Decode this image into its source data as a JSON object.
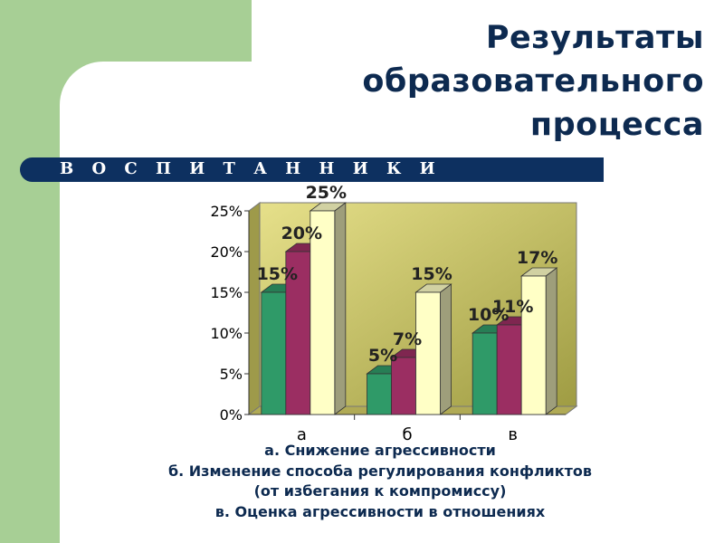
{
  "slide": {
    "title_lines": [
      "Результаты",
      "образовательного",
      "процесса"
    ],
    "banner": "В О С П И Т А Н Н И К И",
    "legend_lines": [
      "а. Снижение агрессивности",
      "б. Изменение способа регулирования конфликтов",
      "(от избегания к компромиссу)",
      "в. Оценка агрессивности в отношениях"
    ]
  },
  "colors": {
    "background_band": "#a7cf95",
    "title": "#0d2a50",
    "banner": "#0d3060",
    "plot_area": "#c8c35e",
    "series": [
      "#2f9a68",
      "#9b2e62",
      "#ffffc6"
    ]
  },
  "chart_data": {
    "type": "bar",
    "style": "3d-clustered",
    "categories": [
      "а",
      "б",
      "в"
    ],
    "series": [
      {
        "values": [
          15,
          5,
          10
        ],
        "labels": [
          "15%",
          "5%",
          "10%"
        ]
      },
      {
        "values": [
          20,
          7,
          11
        ],
        "labels": [
          "20%",
          "7%",
          "11%"
        ]
      },
      {
        "values": [
          25,
          15,
          17
        ],
        "labels": [
          "25%",
          "15%",
          "17%"
        ]
      }
    ],
    "yticks": [
      "0%",
      "5%",
      "10%",
      "15%",
      "20%",
      "25%"
    ],
    "ylim": [
      0,
      25
    ],
    "grid": false,
    "legend": "none"
  }
}
